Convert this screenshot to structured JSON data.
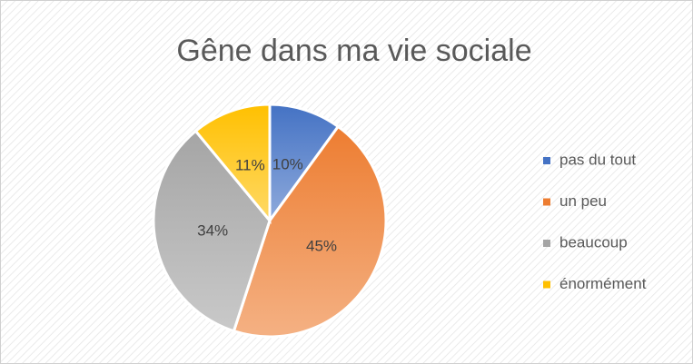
{
  "chart_data": {
    "type": "pie",
    "title": "Gêne dans ma vie sociale",
    "categories": [
      "pas du tout",
      "un peu",
      "beaucoup",
      "énormément"
    ],
    "values": [
      10,
      45,
      34,
      11
    ],
    "value_labels": [
      "10%",
      "45%",
      "34%",
      "11%"
    ],
    "colors": [
      "#4472c4",
      "#ed7d31",
      "#a5a5a5",
      "#ffc000"
    ],
    "legend": "right"
  }
}
